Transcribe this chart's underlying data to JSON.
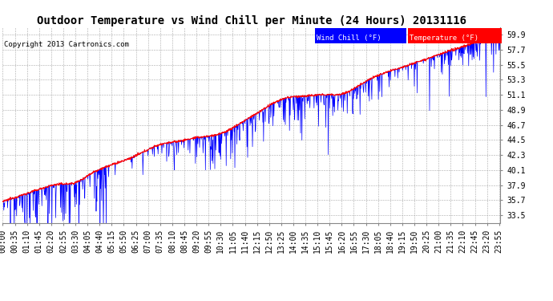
{
  "title": "Outdoor Temperature vs Wind Chill per Minute (24 Hours) 20131116",
  "copyright": "Copyright 2013 Cartronics.com",
  "ylabel_right_ticks": [
    33.5,
    35.7,
    37.9,
    40.1,
    42.3,
    44.5,
    46.7,
    48.9,
    51.1,
    53.3,
    55.5,
    57.7,
    59.9
  ],
  "ylim": [
    32.4,
    61.0
  ],
  "temp_color": "#ff0000",
  "wind_color": "#0000ff",
  "bg_color": "#ffffff",
  "plot_bg": "#ffffff",
  "grid_color": "#aaaaaa",
  "legend_wind_bg": "#0000ff",
  "legend_temp_bg": "#ff0000",
  "title_fontsize": 10,
  "tick_fontsize": 7,
  "copyright_fontsize": 6.5,
  "fig_width": 6.9,
  "fig_height": 3.75,
  "dpi": 100
}
